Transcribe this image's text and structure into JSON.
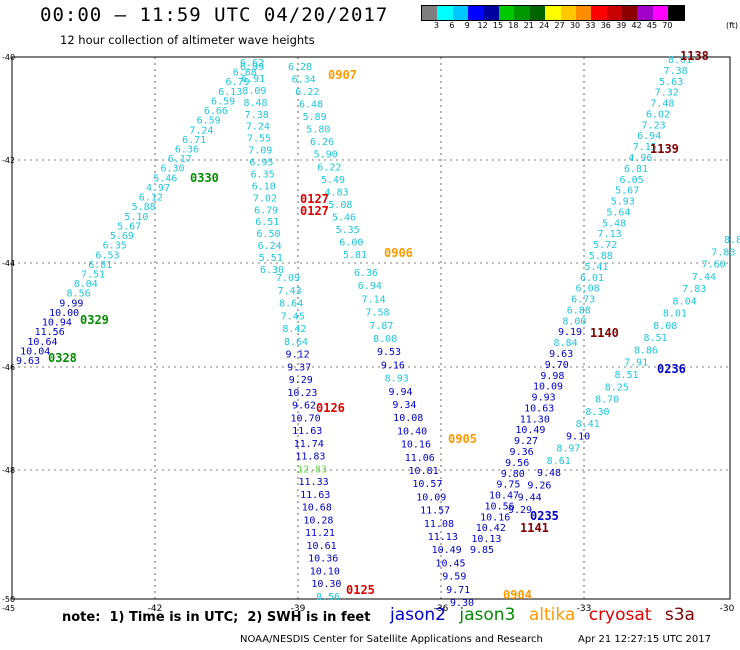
{
  "header": {
    "title": "00:00 — 11:59 UTC 04/20/2017",
    "subtitle": "12 hour collection of altimeter wave heights"
  },
  "colorbar": {
    "unit": "(ft)",
    "labels": [
      "3",
      "6",
      "9",
      "12",
      "15",
      "18",
      "21",
      "24",
      "27",
      "30",
      "33",
      "36",
      "39",
      "42",
      "45",
      "70"
    ],
    "colors": [
      "#7f7f7f",
      "#00ffff",
      "#00c8ff",
      "#0000ff",
      "#0000a0",
      "#00c800",
      "#009600",
      "#006400",
      "#ffff00",
      "#ffc800",
      "#ff8c00",
      "#ff0000",
      "#c80000",
      "#8b0000",
      "#a000c8",
      "#ff00ff",
      "#000000"
    ]
  },
  "axes": {
    "x_ticks": [
      "-42",
      "-39",
      "-36",
      "-33",
      "-30"
    ],
    "y_ticks": [
      "-40",
      "-42",
      "-44",
      "-46",
      "-48",
      "-50"
    ],
    "corner_left": "-45"
  },
  "satellite_colors": {
    "jason2": "#0000c8",
    "jason3": "#008c00",
    "altika": "#ff9900",
    "cryosat": "#e00000",
    "s3a": "#800000"
  },
  "wave_heights": {
    "unit": "ft",
    "tracks": [
      {
        "satellite": "jason3",
        "times": [
          "0330",
          "0329",
          "0328"
        ],
        "values": [
          "6.62",
          "6.88",
          "6.79",
          "6.13",
          "6.59",
          "6.66",
          "6.59",
          "7.24",
          "6.71",
          "6.36",
          "6.17",
          "6.30",
          "5.46",
          "4.97",
          "6.12",
          "5.88",
          "5.10",
          "5.67",
          "5.69",
          "6.35",
          "6.53",
          "6.81",
          "7.51",
          "8.04",
          "8.56",
          "9.99",
          "10.00",
          "10.94",
          "11.56",
          "10.64",
          "10.04",
          "9.63"
        ]
      },
      {
        "satellite": "altika",
        "times": [
          "0907"
        ],
        "values": [
          "6.99",
          "6.91",
          "8.09",
          "8.48",
          "7.38",
          "7.24",
          "7.55",
          "7.09",
          "6.95",
          "6.35",
          "6.10",
          "7.02",
          "6.79",
          "6.51",
          "6.50",
          "6.24",
          "5.51",
          "6.30"
        ]
      },
      {
        "satellite": "cryosat",
        "times": [
          "0127",
          "0127",
          "0126",
          "0125"
        ],
        "values": [
          "6.28",
          "6.34",
          "6.22",
          "6.48",
          "5.89",
          "5.80",
          "6.26",
          "5.90",
          "6.22",
          "5.49",
          "4.83",
          "5.08",
          "5.46",
          "5.35",
          "6.00",
          "5.81"
        ]
      },
      {
        "satellite": "altika",
        "times": [
          "0906",
          "0905",
          "0904"
        ],
        "values": [
          "6.36",
          "6.94",
          "7.14",
          "7.58",
          "7.87",
          "8.08",
          "9.53",
          "9.16",
          "8.93",
          "9.94",
          "9.34",
          "10.08",
          "10.40",
          "10.16",
          "11.06",
          "10.81",
          "10.57",
          "10.09",
          "11.57",
          "11.08",
          "11.13",
          "10.49",
          "10.45",
          "9.59",
          "9.71",
          "9.30"
        ]
      },
      {
        "satellite": "jason2",
        "times": [],
        "values": [
          "7.09",
          "7.43",
          "8.64",
          "7.45",
          "8.42",
          "8.64",
          "9.12",
          "9.37",
          "9.29",
          "10.23",
          "9.62",
          "10.70",
          "11.63",
          "11.74",
          "11.83",
          "12.83",
          "11.33",
          "11.63",
          "10.68",
          "10.28",
          "11.21",
          "10.61",
          "10.36",
          "10.10",
          "10.30",
          "8.56"
        ]
      },
      {
        "satellite": "s3a",
        "times": [
          "1138",
          "1139",
          "1140",
          "1141"
        ],
        "values": [
          "8.01",
          "7.38",
          "5.63",
          "7.32",
          "7.48",
          "6.02",
          "7.23",
          "6.94",
          "7.15",
          "4.96",
          "6.81",
          "6.05",
          "5.67",
          "5.93",
          "5.64",
          "5.48",
          "7.13",
          "5.72",
          "5.88",
          "5.41",
          "6.01",
          "6.08",
          "6.73",
          "6.88",
          "8.00",
          "9.19",
          "8.84",
          "9.63",
          "9.70",
          "9.98",
          "10.09",
          "9.93",
          "10.63",
          "11.30",
          "10.49",
          "9.27",
          "9.36",
          "9.56",
          "9.80",
          "9.75",
          "10.47",
          "10.56",
          "10.16",
          "10.42",
          "10.13",
          "9.85"
        ]
      },
      {
        "satellite": "jason2",
        "times": [
          "0236",
          "0235"
        ],
        "values": [
          "8.8",
          "7.83",
          "7.60",
          "7.44",
          "7.83",
          "8.04",
          "8.01",
          "8.08",
          "8.51",
          "8.86",
          "7.91",
          "8.51",
          "8.25",
          "8.70",
          "8.30",
          "8.41",
          "9.10",
          "8.97",
          "8.61",
          "9.48",
          "9.26",
          "9.44",
          "9.29"
        ]
      }
    ]
  },
  "footer": {
    "note": "note:  1) Time is in UTC;  2) SWH is in feet",
    "legend": [
      "jason2",
      "jason3",
      "altika",
      "cryosat",
      "s3a"
    ],
    "credit": "NOAA/NESDIS Center for Satellite Applications and Research",
    "timestamp": "Apr 21 12:27:15 UTC 2017"
  }
}
